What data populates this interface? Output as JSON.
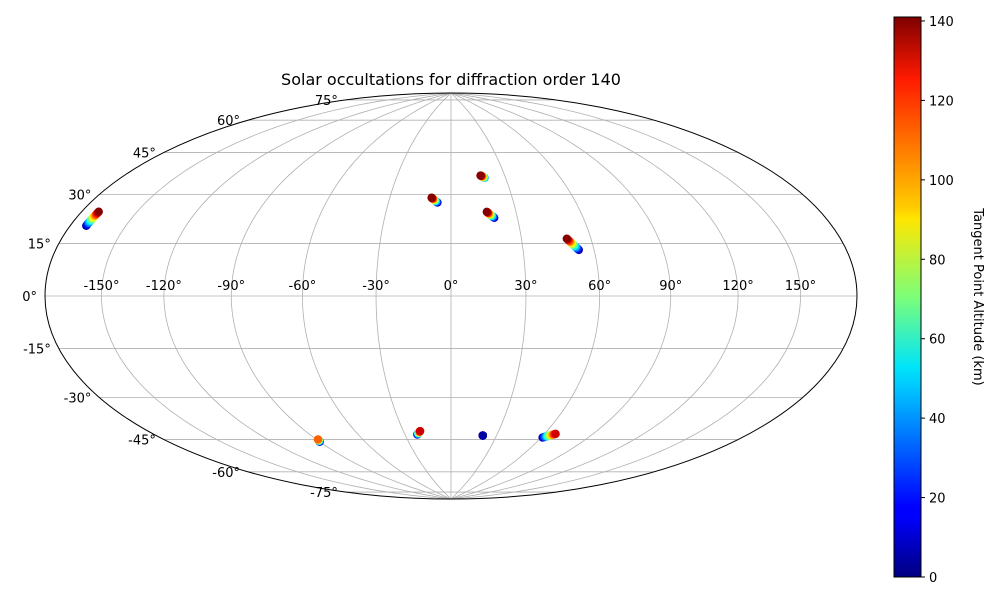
{
  "chart_data": {
    "type": "scatter",
    "projection": "hammer",
    "title": "Solar occultations for diffraction order 140",
    "grid": true,
    "x_ticks": [
      "-150°",
      "-120°",
      "-90°",
      "-60°",
      "-30°",
      "0°",
      "30°",
      "60°",
      "90°",
      "120°",
      "150°"
    ],
    "y_ticks": [
      "-75°",
      "-60°",
      "-45°",
      "-30°",
      "-15°",
      "0°",
      "15°",
      "30°",
      "45°",
      "60°",
      "75°"
    ],
    "colorbar": {
      "label": "Tangent Point Altitude (km)",
      "colormap": "jet",
      "range": [
        0,
        141
      ],
      "ticks": [
        "0",
        "20",
        "40",
        "60",
        "80",
        "100",
        "120",
        "140"
      ]
    },
    "occultations": [
      {
        "lon": [
          -171,
          -170.5
        ],
        "lat": [
          21,
          25.5
        ],
        "alt": [
          5,
          140
        ]
      },
      {
        "lon": [
          -90,
          -89
        ],
        "lat": [
          -57.5,
          -56.5
        ],
        "alt": [
          5,
          110
        ]
      },
      {
        "lon": [
          -22,
          -19.5
        ],
        "lat": [
          -57.5,
          -56
        ],
        "alt": [
          5,
          130
        ]
      },
      {
        "lon": [
          -6.5,
          -9.5
        ],
        "lat": [
          38,
          40
        ],
        "alt": [
          5,
          140
        ]
      },
      {
        "lon": [
          18.5,
          16.5
        ],
        "lat": [
          48.5,
          49.5
        ],
        "alt": [
          40,
          140
        ]
      },
      {
        "lon": [
          19.5,
          16.5
        ],
        "lat": [
          31.5,
          34
        ],
        "alt": [
          5,
          140
        ]
      },
      {
        "lon": [
          21,
          21
        ],
        "lat": [
          -58,
          -58
        ],
        "alt": [
          5,
          5
        ]
      },
      {
        "lon": [
          53.5,
          49.5
        ],
        "lat": [
          18,
          22.5
        ],
        "alt": [
          5,
          140
        ]
      },
      {
        "lon": [
          61,
          67
        ],
        "lat": [
          -57.5,
          -55.5
        ],
        "alt": [
          5,
          130
        ]
      }
    ]
  }
}
